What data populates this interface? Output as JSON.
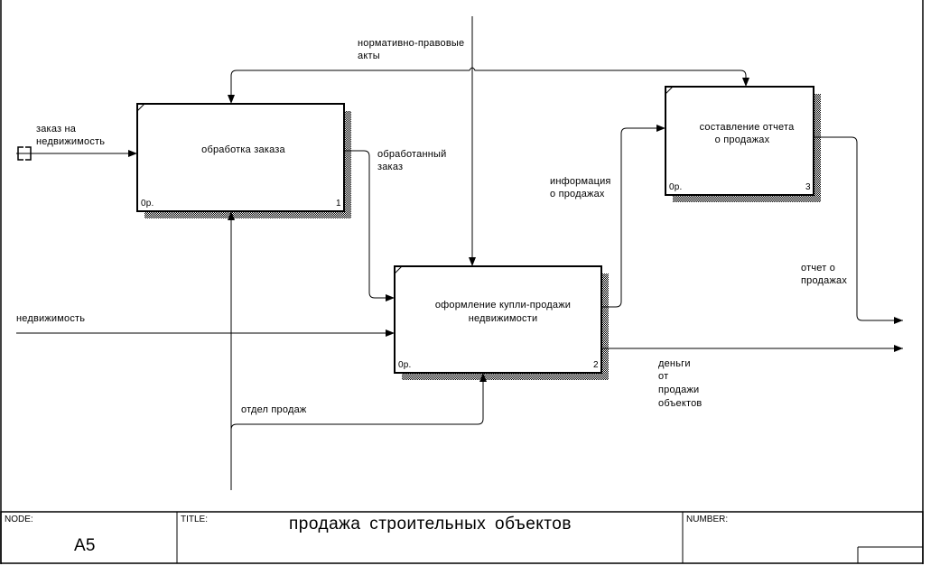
{
  "diagram": {
    "boxes": [
      {
        "name": "обработка заказа",
        "number": "1",
        "status": "0р."
      },
      {
        "name": "оформление купли-продажи недвижимости",
        "name_lines": [
          "оформление купли-продажи",
          "недвижимости"
        ],
        "number": "2",
        "status": "0р."
      },
      {
        "name": "составление отчета о продажах",
        "name_lines": [
          "составление отчета",
          "о продажах"
        ],
        "number": "3",
        "status": "0р."
      }
    ],
    "arrows": {
      "control": [
        "нормативно-правовые",
        "акты"
      ],
      "input1": [
        "заказ на",
        "недвижимость"
      ],
      "processed": [
        "обработанный",
        "заказ"
      ],
      "input2": "недвижимость",
      "sales_info": [
        "информация",
        "о продажах"
      ],
      "report": [
        "отчет о",
        "продажах"
      ],
      "money": [
        "деньги",
        "от",
        "продажи",
        "объектов"
      ],
      "mechanism": "отдел продаж"
    },
    "tunnel_icon": "bracket-tunnel-icon"
  },
  "title_block": {
    "node_label": "NODE:",
    "node_value": "A5",
    "title_label": "TITLE:",
    "title_value": "продажа строительных объектов",
    "number_label": "NUMBER:"
  }
}
